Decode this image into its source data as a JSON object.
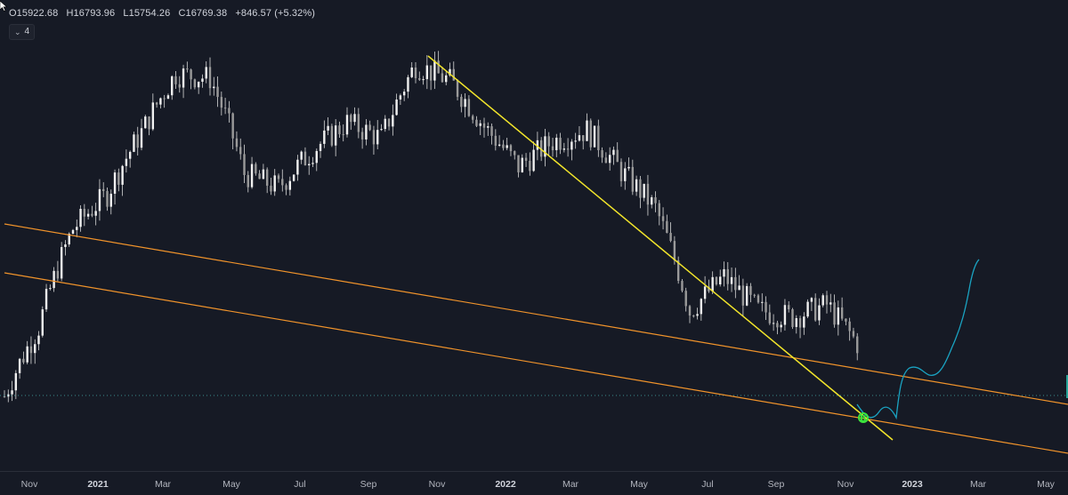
{
  "legend": {
    "open": "O15922.68",
    "high": "H16793.96",
    "low": "L15754.26",
    "close": "C16769.38",
    "change": "+846.57 (+5.32%)"
  },
  "layers_button": {
    "chevron": "⌄",
    "count": "4"
  },
  "colors": {
    "background": "#161a25",
    "candles": "#d8d8d8",
    "channel_lines": "#f0932b",
    "trendline": "#f2e52b",
    "projection": "#1aa3c2",
    "marker": "#3de63d",
    "price_line": "#3a8f8f"
  },
  "chart_data": {
    "type": "candlestick",
    "title": "",
    "price_range_usd": [
      10000,
      70000
    ],
    "x_axis_ticks": [
      "Nov",
      "2021",
      "Mar",
      "May",
      "Jul",
      "Sep",
      "Nov",
      "2022",
      "Mar",
      "May",
      "Jul",
      "Sep",
      "Nov",
      "2023",
      "Mar",
      "May"
    ],
    "series_close_approx": [
      {
        "period": "2020-10",
        "value": 13500
      },
      {
        "period": "2020-11",
        "value": 18500
      },
      {
        "period": "2020-12",
        "value": 29000
      },
      {
        "period": "2021-01",
        "value": 34000
      },
      {
        "period": "2021-02",
        "value": 45000
      },
      {
        "period": "2021-03",
        "value": 58800
      },
      {
        "period": "2021-04",
        "value": 57700
      },
      {
        "period": "2021-05",
        "value": 37300
      },
      {
        "period": "2021-06",
        "value": 35000
      },
      {
        "period": "2021-07",
        "value": 41500
      },
      {
        "period": "2021-08",
        "value": 47100
      },
      {
        "period": "2021-09",
        "value": 43800
      },
      {
        "period": "2021-10",
        "value": 61300
      },
      {
        "period": "2021-11",
        "value": 57000
      },
      {
        "period": "2021-12",
        "value": 46200
      },
      {
        "period": "2022-01",
        "value": 38500
      },
      {
        "period": "2022-02",
        "value": 43200
      },
      {
        "period": "2022-03",
        "value": 45500
      },
      {
        "period": "2022-04",
        "value": 37700
      },
      {
        "period": "2022-05",
        "value": 31800
      },
      {
        "period": "2022-06",
        "value": 19900
      },
      {
        "period": "2022-07",
        "value": 23300
      },
      {
        "period": "2022-08",
        "value": 20000
      },
      {
        "period": "2022-09",
        "value": 19400
      },
      {
        "period": "2022-10",
        "value": 20500
      },
      {
        "period": "2022-11",
        "value": 16769
      }
    ],
    "annotations": [
      "upper descending channel line",
      "lower descending channel line",
      "descending trendline from Nov 2021 high",
      "projected recovery path into 2023",
      "buy marker near Nov 2022 low"
    ]
  }
}
